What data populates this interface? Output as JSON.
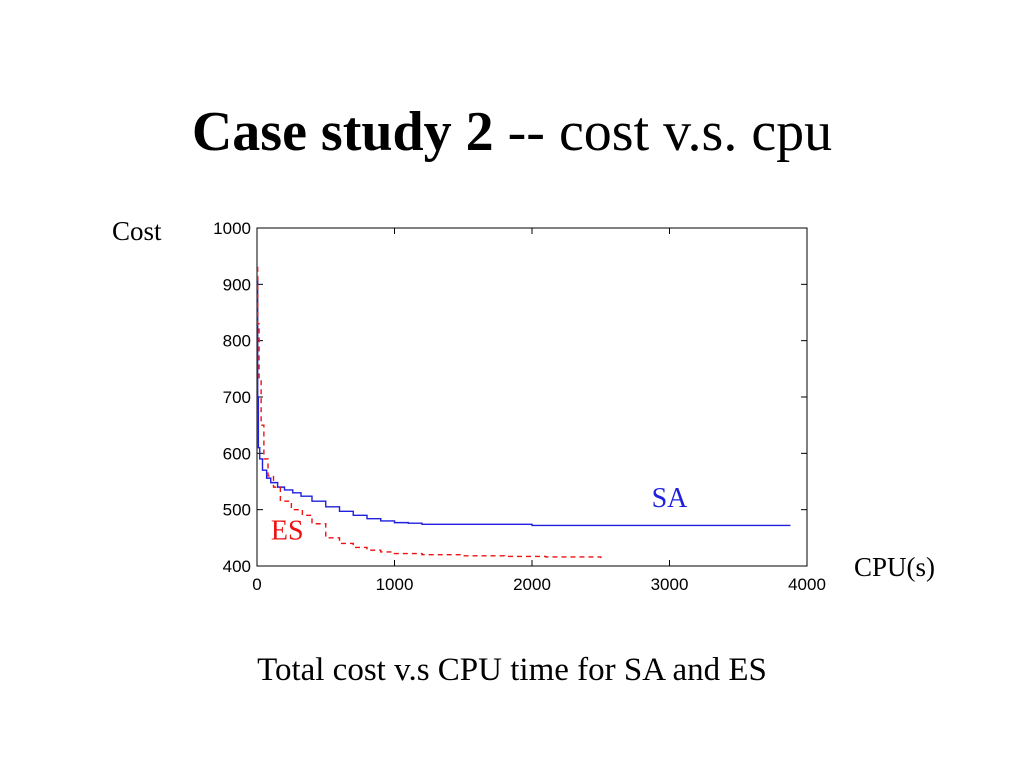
{
  "slide": {
    "title_bold": "Case study 2",
    "title_rest": " -- cost v.s. cpu",
    "caption": "Total cost v.s CPU time for SA and ES"
  },
  "chart_data": {
    "type": "line",
    "title": "",
    "ylabel": "Cost",
    "xlabel": "CPU(s)",
    "xlim": [
      0,
      4000
    ],
    "ylim": [
      400,
      1000
    ],
    "xticks": [
      0,
      1000,
      2000,
      3000,
      4000
    ],
    "yticks": [
      400,
      500,
      600,
      700,
      800,
      900,
      1000
    ],
    "grid": false,
    "series": [
      {
        "name": "SA",
        "color": "#1f1fdd",
        "style": "solid",
        "x": [
          0,
          5,
          10,
          20,
          40,
          70,
          100,
          150,
          200,
          260,
          320,
          400,
          500,
          600,
          700,
          800,
          900,
          1000,
          1100,
          1200,
          1500,
          2000,
          2500,
          3000,
          3500,
          3880
        ],
        "y": [
          910,
          700,
          610,
          590,
          570,
          556,
          548,
          540,
          535,
          530,
          524,
          515,
          505,
          497,
          490,
          484,
          480,
          477,
          476,
          474,
          474,
          472,
          472,
          472,
          472,
          472
        ]
      },
      {
        "name": "ES",
        "color": "#ee1111",
        "style": "dashed",
        "x": [
          0,
          5,
          15,
          30,
          50,
          80,
          120,
          170,
          250,
          330,
          400,
          500,
          600,
          700,
          800,
          900,
          1000,
          1200,
          1500,
          1800,
          2100,
          2500
        ],
        "y": [
          930,
          830,
          730,
          650,
          590,
          560,
          540,
          515,
          500,
          490,
          475,
          450,
          440,
          433,
          428,
          425,
          422,
          420,
          418,
          417,
          416,
          414
        ]
      }
    ]
  }
}
